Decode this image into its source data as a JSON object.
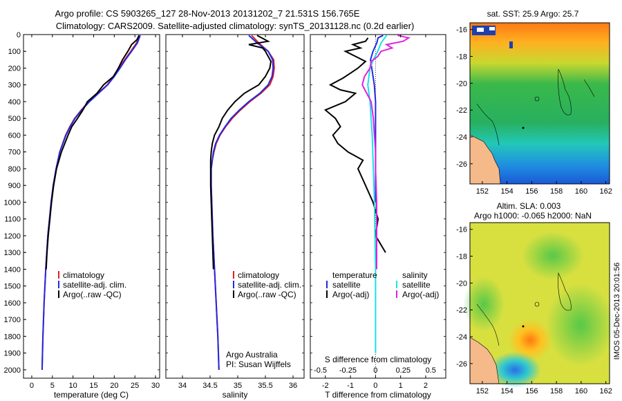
{
  "title": {
    "line1": "Argo profile: CS 5903265_127 28-Nov-2013 20131202_7 21.531S 156.765E",
    "line2": "Climatology: CARS2009. Satellite-adjusted climatology: synTS_20131128.nc (0.2d earlier)"
  },
  "depth_axis": {
    "ylim": [
      0,
      2050
    ],
    "ticks": [
      0,
      100,
      200,
      300,
      400,
      500,
      600,
      700,
      800,
      900,
      1000,
      1100,
      1200,
      1300,
      1400,
      1500,
      1600,
      1700,
      1800,
      1900,
      2000
    ]
  },
  "colors": {
    "climatology": "#e81c1c",
    "satellite": "#1f2adf",
    "argo": "#000000",
    "sat_salinity": "#18e0e8",
    "argo_salinity": "#e020e0",
    "land": "#f5b98a"
  },
  "chart_data": [
    {
      "type": "line",
      "id": "temperature",
      "xlabel": "temperature (deg C)",
      "xlim": [
        -2,
        31
      ],
      "xticks": [
        0,
        5,
        10,
        15,
        20,
        25,
        30
      ],
      "legend": [
        "climatology",
        "satellite-adj. clim.",
        "Argo(..raw -QC)"
      ],
      "series": [
        {
          "name": "climatology",
          "color": "#e81c1c",
          "depth": [
            5,
            50,
            100,
            150,
            200,
            250,
            300,
            350,
            400,
            450,
            500,
            550,
            600,
            700,
            800,
            900,
            1000,
            1200,
            1400,
            1600,
            1800,
            2000
          ],
          "values": [
            26.0,
            25.4,
            24.0,
            22.5,
            21.2,
            19.8,
            18.3,
            16.0,
            13.8,
            12.0,
            10.4,
            9.2,
            8.2,
            6.8,
            5.9,
            5.2,
            4.7,
            3.9,
            3.4,
            3.0,
            2.7,
            2.5
          ]
        },
        {
          "name": "satellite-adj. clim.",
          "color": "#1f2adf",
          "depth": [
            5,
            50,
            100,
            150,
            200,
            250,
            300,
            350,
            400,
            450,
            500,
            550,
            600,
            700,
            800,
            900,
            1000,
            1200,
            1400,
            1600,
            1800,
            2000
          ],
          "values": [
            26.3,
            25.6,
            24.2,
            22.7,
            21.4,
            20.0,
            18.4,
            16.2,
            14.0,
            12.1,
            10.5,
            9.3,
            8.3,
            6.8,
            5.9,
            5.2,
            4.7,
            3.9,
            3.4,
            3.0,
            2.7,
            2.5
          ]
        },
        {
          "name": "Argo(..raw -QC)",
          "color": "#000000",
          "depth": [
            5,
            30,
            60,
            100,
            150,
            200,
            250,
            300,
            350,
            400,
            450,
            500,
            550,
            600,
            700,
            800,
            900,
            1000,
            1100,
            1200,
            1300,
            1400
          ],
          "values": [
            26.0,
            25.5,
            24.2,
            23.3,
            22.0,
            21.0,
            19.8,
            17.4,
            15.8,
            13.5,
            12.4,
            11.1,
            9.7,
            8.8,
            7.2,
            6.0,
            5.3,
            4.8,
            4.4,
            4.0,
            3.7,
            3.5
          ]
        }
      ]
    },
    {
      "type": "line",
      "id": "salinity",
      "xlabel": "salinity",
      "xlim": [
        33.7,
        36.2
      ],
      "xticks": [
        34,
        34.5,
        35,
        35.5,
        36
      ],
      "legend": [
        "climatology",
        "satellite-adj. clim.",
        "Argo(..raw -QC)"
      ],
      "annotation": [
        "Argo Australia",
        "PI: Susan Wijffels"
      ],
      "series": [
        {
          "name": "climatology",
          "color": "#e81c1c",
          "depth": [
            5,
            50,
            100,
            150,
            200,
            250,
            300,
            350,
            400,
            450,
            500,
            550,
            600,
            650,
            700,
            750,
            800,
            900,
            1000,
            1200,
            1400,
            1600,
            1800,
            2000
          ],
          "values": [
            35.25,
            35.38,
            35.55,
            35.65,
            35.66,
            35.64,
            35.58,
            35.42,
            35.22,
            35.05,
            34.9,
            34.78,
            34.68,
            34.61,
            34.57,
            34.54,
            34.52,
            34.52,
            34.53,
            34.55,
            34.58,
            34.61,
            34.64,
            34.66
          ]
        },
        {
          "name": "satellite-adj. clim.",
          "color": "#1f2adf",
          "depth": [
            5,
            50,
            100,
            150,
            200,
            250,
            300,
            350,
            400,
            450,
            500,
            550,
            600,
            650,
            700,
            750,
            800,
            900,
            1000,
            1200,
            1400,
            1600,
            1800,
            2000
          ],
          "values": [
            35.2,
            35.35,
            35.55,
            35.63,
            35.64,
            35.62,
            35.55,
            35.4,
            35.2,
            35.03,
            34.88,
            34.77,
            34.67,
            34.6,
            34.56,
            34.54,
            34.52,
            34.52,
            34.53,
            34.55,
            34.58,
            34.61,
            34.64,
            34.66
          ]
        },
        {
          "name": "Argo(..raw -QC)",
          "color": "#000000",
          "depth": [
            5,
            40,
            60,
            80,
            100,
            130,
            160,
            200,
            250,
            300,
            350,
            400,
            450,
            500,
            550,
            600,
            650,
            700,
            750,
            800,
            900,
            1000,
            1100,
            1200,
            1300,
            1400
          ],
          "values": [
            35.35,
            35.55,
            35.2,
            35.45,
            35.5,
            35.55,
            35.6,
            35.58,
            35.5,
            35.38,
            35.12,
            34.95,
            34.82,
            34.72,
            34.66,
            34.58,
            34.54,
            34.52,
            34.51,
            34.51,
            34.51,
            34.52,
            34.53,
            34.54,
            34.55,
            34.56
          ]
        }
      ]
    },
    {
      "type": "line",
      "id": "difference",
      "xlabel": "T difference from climatology",
      "xlabel_top": "S difference from climatology",
      "xlim": [
        -2.6,
        2.8
      ],
      "xticks": [
        -2,
        -1,
        0,
        1,
        2
      ],
      "s_ticks": [
        -0.5,
        -0.25,
        0,
        0.25,
        0.5
      ],
      "legend_left": {
        "title": "temperature",
        "items": [
          "satellite",
          "Argo(-adj)"
        ]
      },
      "legend_right": {
        "title": "salinity",
        "items": [
          "satellite",
          "Argo(-adj)"
        ]
      },
      "series": [
        {
          "name": "T satellite",
          "color": "#1f2adf",
          "depth": [
            5,
            20,
            50,
            100,
            150,
            200,
            300,
            400,
            600,
            1000
          ],
          "values": [
            0.3,
            0.1,
            0.05,
            -0.1,
            -0.2,
            -0.15,
            -0.05,
            0.0,
            0.0,
            0.0
          ]
        },
        {
          "name": "T Argo(-adj)",
          "color": "#000000",
          "depth": [
            20,
            40,
            60,
            80,
            100,
            130,
            160,
            200,
            230,
            260,
            300,
            330,
            350,
            400,
            450,
            500,
            550,
            600,
            650,
            700,
            750,
            800,
            900,
            1000,
            1100,
            1200,
            1300
          ],
          "values": [
            -0.3,
            -0.4,
            -0.9,
            -0.6,
            -1.2,
            -0.8,
            -0.4,
            -0.7,
            -1.0,
            -1.3,
            -1.8,
            -1.4,
            -0.8,
            -1.2,
            -2.0,
            -1.6,
            -1.4,
            -1.7,
            -1.5,
            -1.1,
            -0.5,
            -0.7,
            -0.4,
            -0.1,
            0.1,
            0.0,
            0.4
          ]
        },
        {
          "name": "S satellite",
          "color": "#18e0e8",
          "depth": [
            5,
            50,
            100,
            150,
            200,
            300,
            400,
            600,
            1000,
            1400,
            1800,
            1900
          ],
          "values": [
            0.1,
            0.05,
            0.02,
            -0.02,
            -0.05,
            -0.07,
            -0.05,
            -0.03,
            -0.01,
            0.0,
            0.0,
            0.0
          ]
        },
        {
          "name": "S Argo(-adj)",
          "color": "#e020e0",
          "depth": [
            5,
            20,
            40,
            60,
            80,
            100,
            130,
            160,
            200,
            250,
            300,
            350,
            400,
            500,
            600,
            700,
            800,
            1000,
            1200,
            1400
          ],
          "values": [
            0.2,
            0.3,
            0.25,
            0.1,
            0.15,
            0.05,
            0.02,
            -0.04,
            -0.05,
            -0.1,
            -0.12,
            -0.08,
            -0.04,
            -0.02,
            -0.01,
            0.0,
            0.0,
            0.01,
            0.01,
            0.01
          ]
        }
      ]
    }
  ],
  "maps": {
    "lon_ticks": [
      152,
      154,
      156,
      158,
      160,
      162
    ],
    "lat_ticks": [
      -16,
      -18,
      -20,
      -22,
      -24,
      -26
    ],
    "sst_title": "sat. SST: 25.9 Argo: 25.7",
    "sla_title1": "Altim. SLA: 0.003",
    "sla_title2": "Argo h1000: -0.065 h2000: NaN",
    "stamp": "IMOS 05-Dec-2013 20:01:56"
  }
}
